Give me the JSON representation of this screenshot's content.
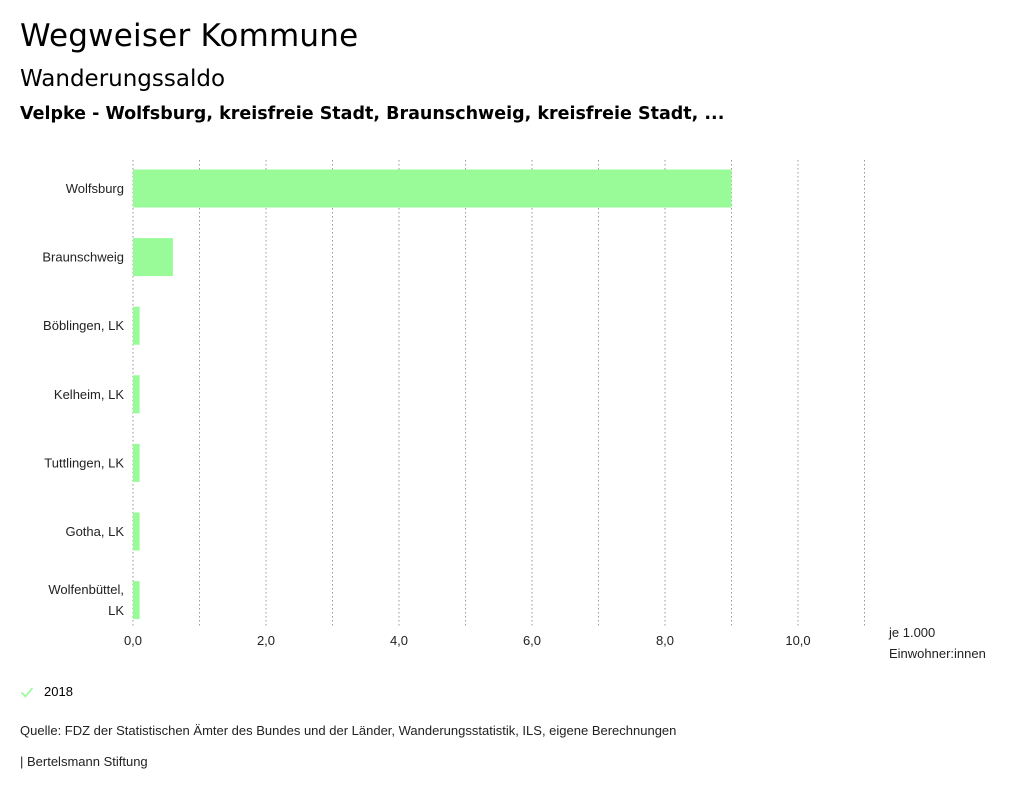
{
  "header": {
    "title": "Wegweiser Kommune",
    "subtitle": "Wanderungssaldo",
    "subsubtitle": "Velpke - Wolfsburg, kreisfreie Stadt, Braunschweig, kreisfreie Stadt, ..."
  },
  "chart_data": {
    "type": "bar",
    "orientation": "horizontal",
    "categories": [
      "Wolfsburg",
      "Braunschweig",
      "Böblingen, LK",
      "Kelheim, LK",
      "Tuttlingen, LK",
      "Gotha, LK",
      "Wolfenbüttel, LK"
    ],
    "category_lines": [
      [
        "Wolfsburg"
      ],
      [
        "Braunschweig"
      ],
      [
        "Böblingen, LK"
      ],
      [
        "Kelheim, LK"
      ],
      [
        "Tuttlingen, LK"
      ],
      [
        "Gotha, LK"
      ],
      [
        "Wolfenbüttel,",
        "LK"
      ]
    ],
    "series": [
      {
        "name": "2018",
        "values": [
          9.0,
          0.6,
          0.1,
          0.1,
          0.1,
          0.1,
          0.1
        ]
      }
    ],
    "xlim": [
      0,
      11
    ],
    "xticks": [
      0,
      2,
      4,
      6,
      8,
      10
    ],
    "xtick_labels": [
      "0,0",
      "2,0",
      "4,0",
      "6,0",
      "8,0",
      "10,0"
    ],
    "xlabel": [
      "je 1.000",
      "Einwohner:innen"
    ],
    "grid": "vertical dotted",
    "bar_color": "#98fb98"
  },
  "legend": {
    "label": "2018",
    "color": "#98fb98"
  },
  "footer": {
    "source": "Quelle: FDZ der Statistischen Ämter des Bundes und der Länder, Wanderungsstatistik, ILS, eigene Berechnungen",
    "credit": "| Bertelsmann Stiftung"
  }
}
